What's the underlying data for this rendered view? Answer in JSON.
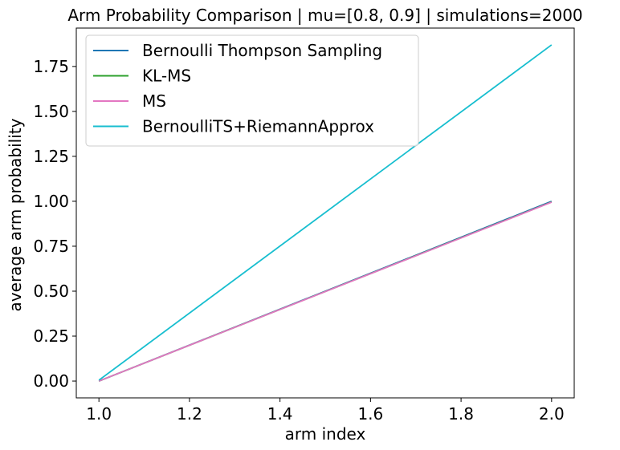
{
  "chart_data": {
    "type": "line",
    "title": "Arm Probability Comparison | mu=[0.8, 0.9] | simulations=2000",
    "xlabel": "arm index",
    "ylabel": "average arm probability",
    "xlim": [
      0.95,
      2.05
    ],
    "ylim": [
      -0.0935,
      1.9635
    ],
    "xticks": [
      1.0,
      1.2,
      1.4,
      1.6,
      1.8,
      2.0
    ],
    "xtick_labels": [
      "1.0",
      "1.2",
      "1.4",
      "1.6",
      "1.8",
      "2.0"
    ],
    "yticks": [
      0.0,
      0.25,
      0.5,
      0.75,
      1.0,
      1.25,
      1.5,
      1.75
    ],
    "ytick_labels": [
      "0.00",
      "0.25",
      "0.50",
      "0.75",
      "1.00",
      "1.25",
      "1.50",
      "1.75"
    ],
    "grid": false,
    "legend_position": "top-left",
    "x": [
      1,
      2
    ],
    "series": [
      {
        "name": "Bernoulli Thompson Sampling",
        "color": "#1f77b4",
        "values": [
          0.0,
          1.0
        ]
      },
      {
        "name": "KL-MS",
        "color": "#2ca02c",
        "values": [
          0.0,
          0.996
        ]
      },
      {
        "name": "MS",
        "color": "#e377c2",
        "values": [
          0.0,
          0.995
        ]
      },
      {
        "name": "BernoulliTS+RiemannApprox",
        "color": "#17becf",
        "values": [
          0.005,
          1.87
        ]
      }
    ]
  }
}
